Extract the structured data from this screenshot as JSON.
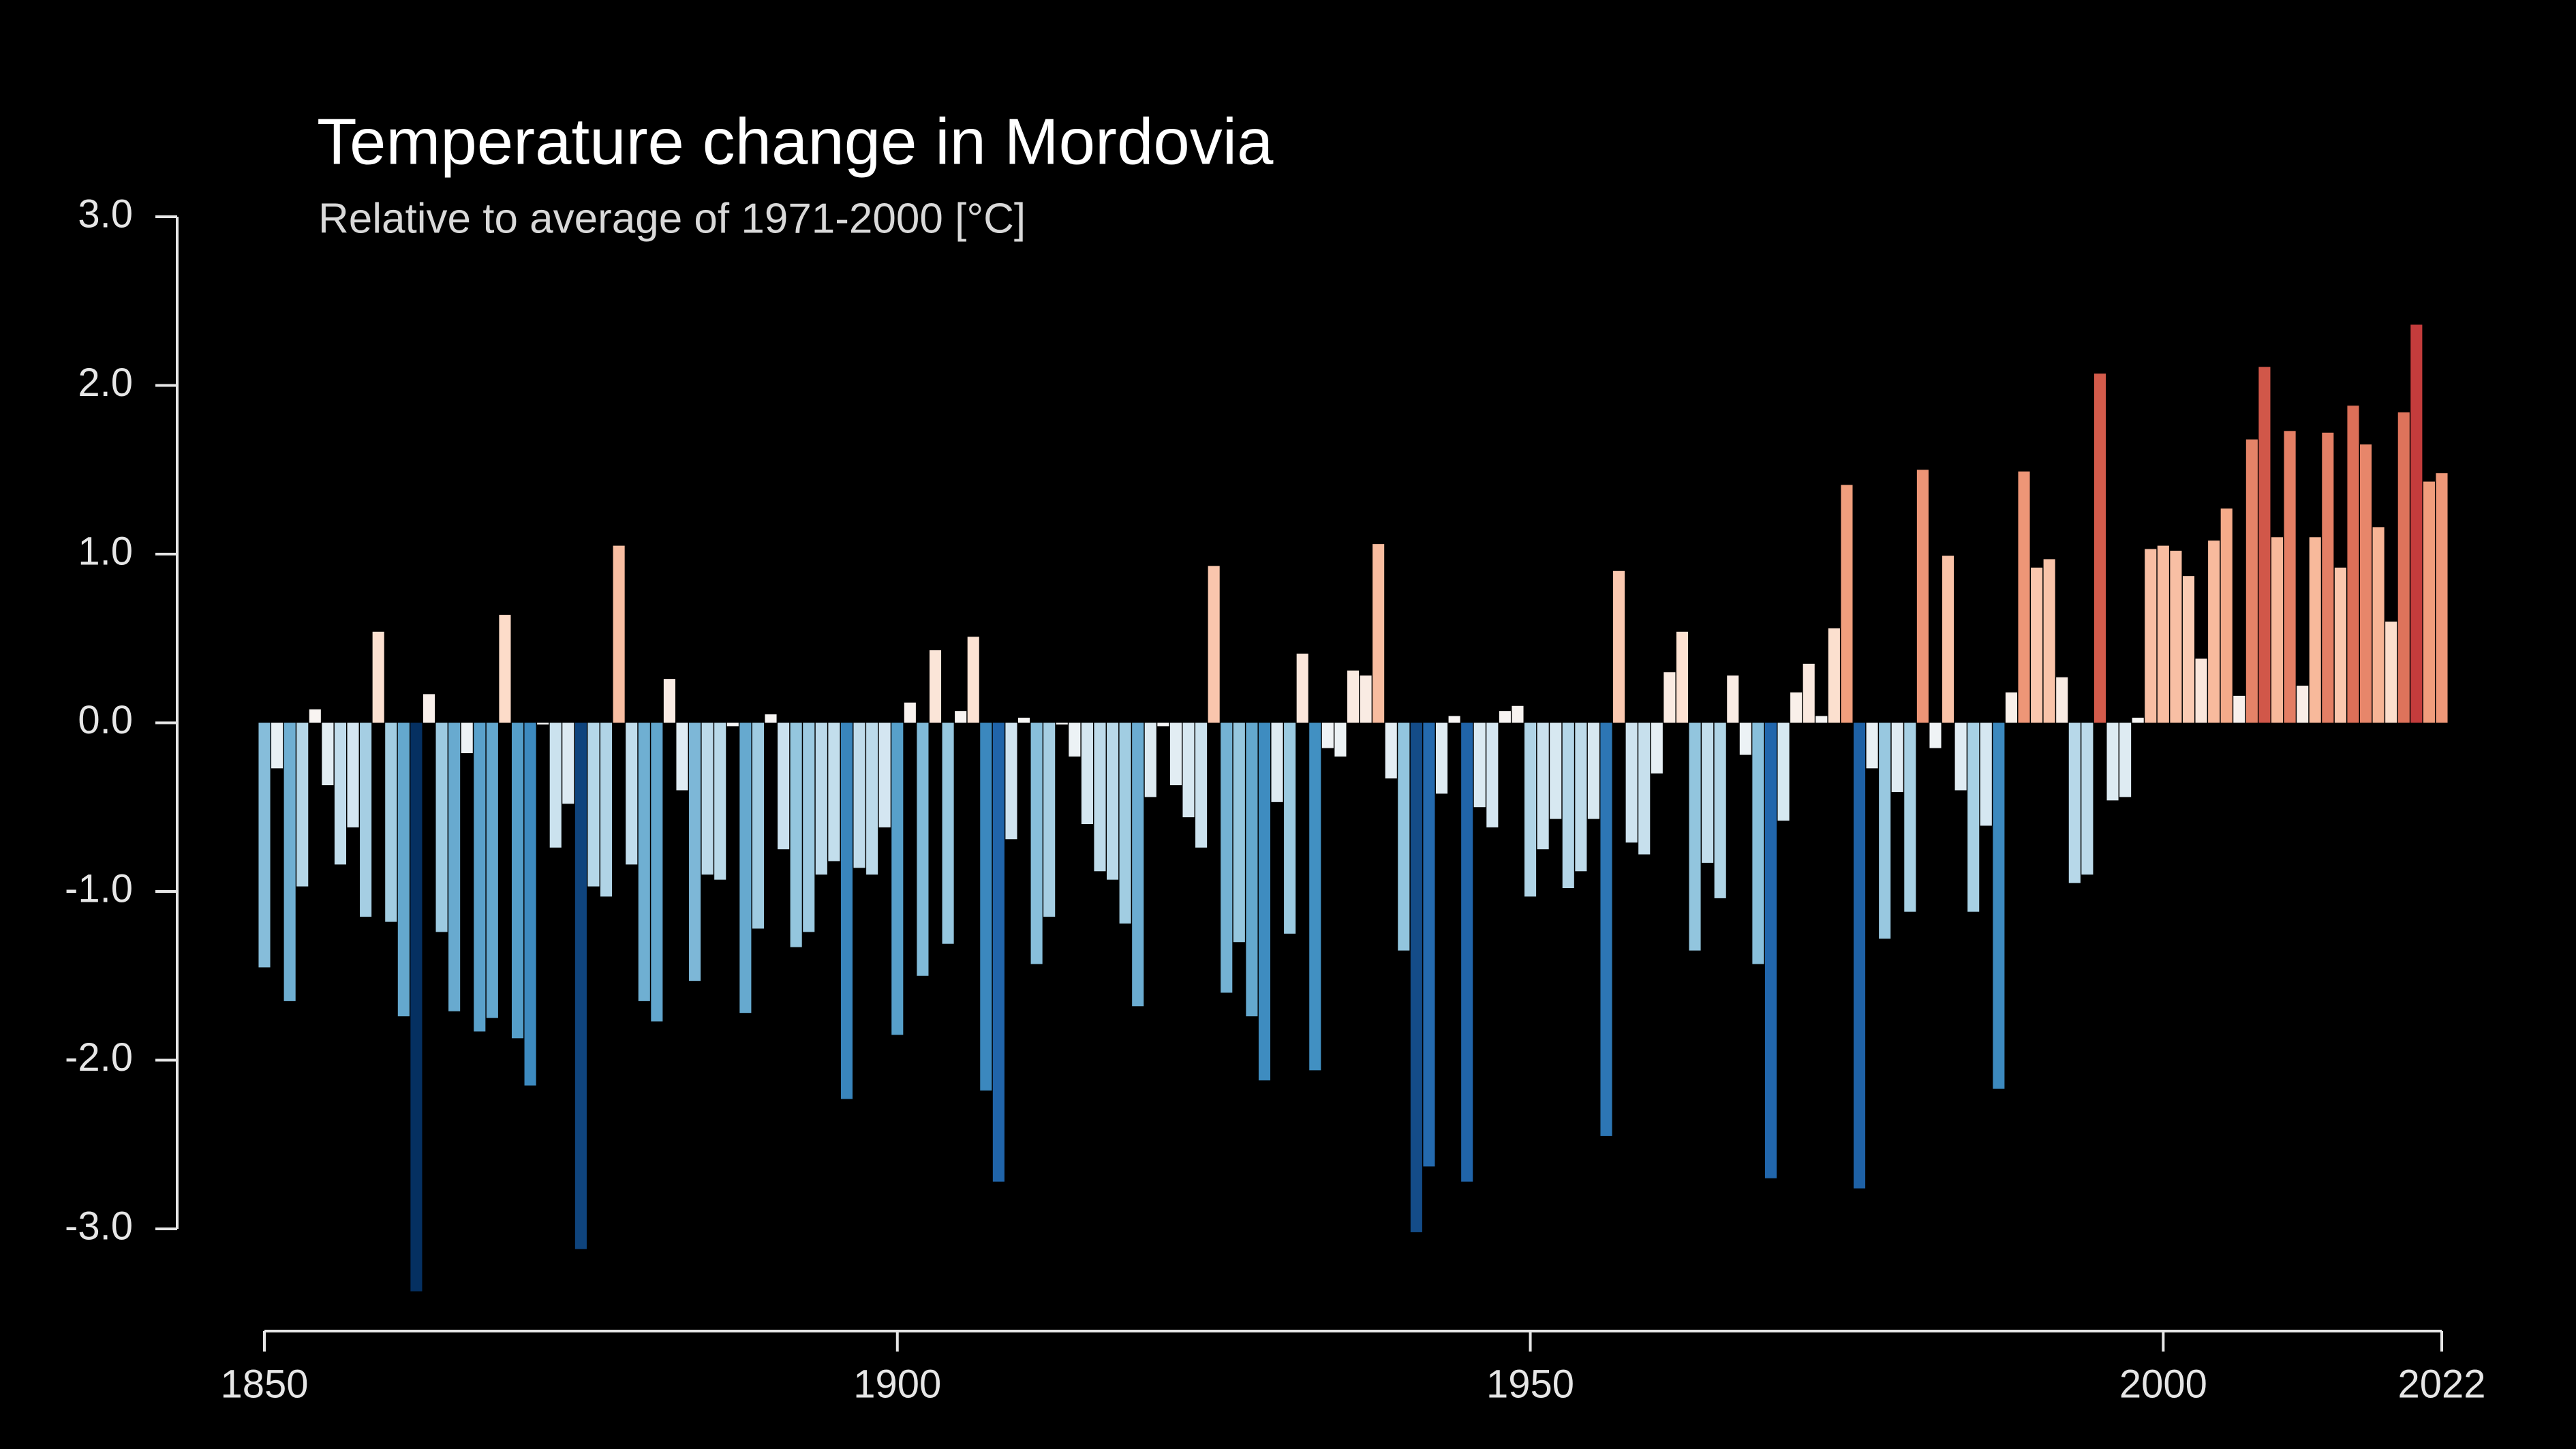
{
  "chart_data": {
    "type": "bar",
    "title": "Temperature change in Mordovia",
    "subtitle": "Relative to average of 1971-2000  [°C]",
    "colormap": "RdBu_r",
    "x": [
      1850,
      1851,
      1852,
      1853,
      1854,
      1855,
      1856,
      1857,
      1858,
      1859,
      1860,
      1861,
      1862,
      1863,
      1864,
      1865,
      1866,
      1867,
      1868,
      1869,
      1870,
      1871,
      1872,
      1873,
      1874,
      1875,
      1876,
      1877,
      1878,
      1879,
      1880,
      1881,
      1882,
      1883,
      1884,
      1885,
      1886,
      1887,
      1888,
      1889,
      1890,
      1891,
      1892,
      1893,
      1894,
      1895,
      1896,
      1897,
      1898,
      1899,
      1900,
      1901,
      1902,
      1903,
      1904,
      1905,
      1906,
      1907,
      1908,
      1909,
      1910,
      1911,
      1912,
      1913,
      1914,
      1915,
      1916,
      1917,
      1918,
      1919,
      1920,
      1921,
      1922,
      1923,
      1924,
      1925,
      1926,
      1927,
      1928,
      1929,
      1930,
      1931,
      1932,
      1933,
      1934,
      1935,
      1936,
      1937,
      1938,
      1939,
      1940,
      1941,
      1942,
      1943,
      1944,
      1945,
      1946,
      1947,
      1948,
      1949,
      1950,
      1951,
      1952,
      1953,
      1954,
      1955,
      1956,
      1957,
      1958,
      1959,
      1960,
      1961,
      1962,
      1963,
      1964,
      1965,
      1966,
      1967,
      1968,
      1969,
      1970,
      1971,
      1972,
      1973,
      1974,
      1975,
      1976,
      1977,
      1978,
      1979,
      1980,
      1981,
      1982,
      1983,
      1984,
      1985,
      1986,
      1987,
      1988,
      1989,
      1990,
      1991,
      1992,
      1993,
      1994,
      1995,
      1996,
      1997,
      1998,
      1999,
      2000,
      2001,
      2002,
      2003,
      2004,
      2005,
      2006,
      2007,
      2008,
      2009,
      2010,
      2011,
      2012,
      2013,
      2014,
      2015,
      2016,
      2017,
      2018,
      2019,
      2020,
      2021,
      2022
    ],
    "values": [
      -1.45,
      -0.27,
      -1.65,
      -0.97,
      0.08,
      -0.37,
      -0.84,
      -0.62,
      -1.15,
      0.54,
      -1.18,
      -1.74,
      -3.37,
      0.17,
      -1.24,
      -1.71,
      -0.18,
      -1.83,
      -1.75,
      0.64,
      -1.87,
      -2.15,
      -0.01,
      -0.74,
      -0.48,
      -3.12,
      -0.97,
      -1.03,
      1.05,
      -0.84,
      -1.65,
      -1.77,
      0.26,
      -0.4,
      -1.53,
      -0.9,
      -0.93,
      -0.02,
      -1.72,
      -1.22,
      0.05,
      -0.75,
      -1.33,
      -1.24,
      -0.9,
      -0.82,
      -2.23,
      -0.86,
      -0.9,
      -0.62,
      -1.85,
      0.12,
      -1.5,
      0.43,
      -1.31,
      0.07,
      0.51,
      -2.18,
      -2.72,
      -0.69,
      0.03,
      -1.43,
      -1.15,
      -0.01,
      -0.2,
      -0.6,
      -0.88,
      -0.93,
      -1.19,
      -1.68,
      -0.44,
      -0.02,
      -0.37,
      -0.56,
      -0.74,
      0.93,
      -1.6,
      -1.3,
      -1.74,
      -2.12,
      -0.47,
      -1.25,
      0.41,
      -2.06,
      -0.15,
      -0.2,
      0.31,
      0.28,
      1.06,
      -0.33,
      -1.35,
      -3.02,
      -2.63,
      -0.42,
      0.04,
      -2.72,
      -0.5,
      -0.62,
      0.07,
      0.1,
      -1.03,
      -0.75,
      -0.57,
      -0.98,
      -0.88,
      -0.57,
      -2.45,
      0.9,
      -0.71,
      -0.78,
      -0.3,
      0.3,
      0.54,
      -1.35,
      -0.83,
      -1.04,
      0.28,
      -0.19,
      -1.43,
      -2.7,
      -0.58,
      0.18,
      0.35,
      0.04,
      0.56,
      1.41,
      -2.76,
      -0.27,
      -1.28,
      -0.41,
      -1.12,
      1.5,
      -0.15,
      0.99,
      -0.4,
      -1.12,
      -0.61,
      -2.17,
      0.18,
      1.49,
      0.92,
      0.97,
      0.27,
      -0.95,
      -0.9,
      2.07,
      -0.46,
      -0.44,
      0.03,
      1.03,
      1.05,
      1.02,
      0.87,
      0.38,
      1.08,
      1.27,
      0.16,
      1.68,
      2.11,
      1.1,
      1.73,
      0.22,
      1.1,
      1.72,
      0.92,
      1.88,
      1.65,
      1.16,
      0.6,
      1.84,
      2.36,
      1.43,
      1.48
    ],
    "xlim": [
      1850,
      2022
    ],
    "xticks": [
      1850,
      1900,
      1950,
      2000,
      2022
    ],
    "ylim": [
      -3.0,
      3.0
    ],
    "yticks": [
      {
        "value": -3,
        "label": "-3.0"
      },
      {
        "value": -2,
        "label": "-2.0"
      },
      {
        "value": -1,
        "label": "-1.0"
      },
      {
        "value": 0,
        "label": "0.0"
      },
      {
        "value": 1,
        "label": "1.0"
      },
      {
        "value": 2,
        "label": "2.0"
      },
      {
        "value": 3,
        "label": "3.0"
      }
    ]
  }
}
